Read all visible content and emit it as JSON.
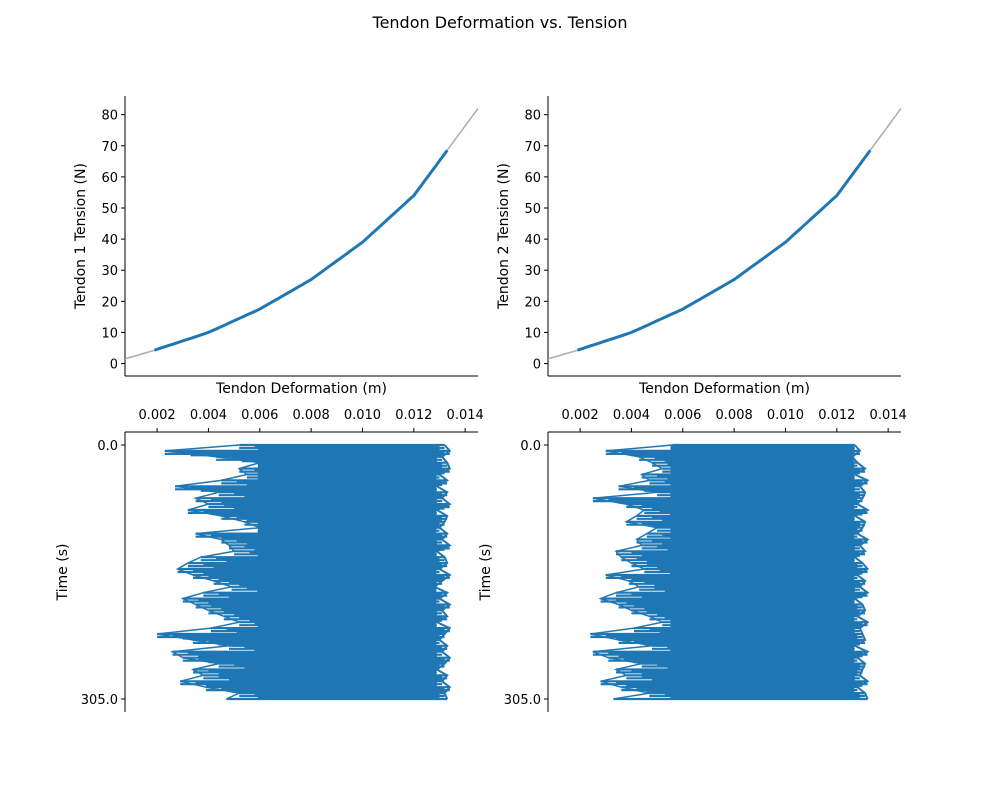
{
  "title": "Tendon Deformation vs. Tension",
  "colors": {
    "data": "#1f77b4",
    "reference": "#b0b0b0",
    "axis": "#000000"
  },
  "chart_data": [
    {
      "type": "line",
      "panel": "top-left",
      "xlabel": "Tendon Deformation (m)",
      "ylabel": "Tendon 1 Tension (N)",
      "xlim": [
        0.00075,
        0.0145
      ],
      "ylim": [
        -4,
        86
      ],
      "yticks": [
        0,
        10,
        20,
        30,
        40,
        50,
        60,
        70,
        80
      ],
      "xticks_shown": false,
      "series": [
        {
          "x": [
            0.00075,
            0.002,
            0.004,
            0.006,
            0.008,
            0.01,
            0.012,
            0.0145
          ],
          "y": [
            1.5,
            4.5,
            10,
            17.5,
            27,
            39,
            54,
            82
          ]
        },
        {
          "x": [
            0.0019,
            0.004,
            0.006,
            0.008,
            0.01,
            0.012,
            0.0133
          ],
          "y": [
            4.3,
            10,
            17.5,
            27,
            39,
            54,
            68.5
          ]
        }
      ]
    },
    {
      "type": "line",
      "panel": "top-right",
      "xlabel": "Tendon Deformation (m)",
      "ylabel": "Tendon 2 Tension (N)",
      "xlim": [
        0.00075,
        0.0145
      ],
      "ylim": [
        -4,
        86
      ],
      "yticks": [
        0,
        10,
        20,
        30,
        40,
        50,
        60,
        70,
        80
      ],
      "xticks_shown": false,
      "series": [
        {
          "x": [
            0.00075,
            0.002,
            0.004,
            0.006,
            0.008,
            0.01,
            0.012,
            0.0145
          ],
          "y": [
            1.5,
            4.5,
            10,
            17.5,
            27,
            39,
            54,
            82
          ]
        },
        {
          "x": [
            0.0019,
            0.004,
            0.006,
            0.008,
            0.01,
            0.012,
            0.0133
          ],
          "y": [
            4.3,
            10,
            17.5,
            27,
            39,
            54,
            68.5
          ]
        }
      ]
    },
    {
      "type": "line",
      "panel": "bottom-left",
      "ylabel": "Time (s)",
      "xlim": [
        0.00075,
        0.0145
      ],
      "ylim": [
        305.0,
        0.0
      ],
      "xticks": [
        0.002,
        0.004,
        0.006,
        0.008,
        0.01,
        0.012,
        0.014
      ],
      "xtick_labels": [
        "0.002",
        "0.004",
        "0.006",
        "0.008",
        "0.010",
        "0.012",
        "0.014"
      ],
      "ytick_labels": [
        "0.0",
        "305.0"
      ],
      "left_extent_m": [
        0.0052,
        0.0023,
        0.0043,
        0.006,
        0.0052,
        0.0055,
        0.0045,
        0.0027,
        0.0044,
        0.0035,
        0.004,
        0.0032,
        0.0045,
        0.0054,
        0.006,
        0.0035,
        0.0045,
        0.0048,
        0.005,
        0.0037,
        0.0032,
        0.0028,
        0.0034,
        0.0042,
        0.0049,
        0.0038,
        0.003,
        0.0035,
        0.004,
        0.0046,
        0.0052,
        0.0041,
        0.002,
        0.0034,
        0.0048,
        0.0026,
        0.003,
        0.0044,
        0.0034,
        0.0038,
        0.0029,
        0.0039,
        0.0052,
        0.0047
      ],
      "right_extent_m": [
        0.0132,
        0.0134,
        0.0131,
        0.0133,
        0.0134,
        0.013,
        0.0133,
        0.0129,
        0.0133,
        0.0131,
        0.0134,
        0.0129,
        0.0133,
        0.0132,
        0.013,
        0.0133,
        0.0131,
        0.0134,
        0.0129,
        0.0132,
        0.0133,
        0.013,
        0.0134,
        0.0131,
        0.0128,
        0.0133,
        0.013,
        0.0134,
        0.0131,
        0.0133,
        0.0129,
        0.0134,
        0.0132,
        0.013,
        0.0133,
        0.0131,
        0.0134,
        0.0132,
        0.0129,
        0.0133,
        0.0131,
        0.0134,
        0.0132,
        0.0133
      ]
    },
    {
      "type": "line",
      "panel": "bottom-right",
      "ylabel": "Time (s)",
      "xlim": [
        0.00075,
        0.0145
      ],
      "ylim": [
        305.0,
        0.0
      ],
      "xticks": [
        0.002,
        0.004,
        0.006,
        0.008,
        0.01,
        0.012,
        0.014
      ],
      "xtick_labels": [
        "0.002",
        "0.004",
        "0.006",
        "0.008",
        "0.010",
        "0.012",
        "0.014"
      ],
      "ytick_labels": [
        "0.0",
        "305.0"
      ],
      "left_extent_m": [
        0.0056,
        0.003,
        0.0043,
        0.0048,
        0.0052,
        0.0044,
        0.0047,
        0.0035,
        0.005,
        0.0025,
        0.0038,
        0.0045,
        0.0042,
        0.0038,
        0.005,
        0.0046,
        0.0042,
        0.0044,
        0.0034,
        0.0036,
        0.004,
        0.0045,
        0.003,
        0.0039,
        0.0043,
        0.0034,
        0.0028,
        0.0035,
        0.004,
        0.0047,
        0.0052,
        0.0041,
        0.0024,
        0.0035,
        0.0048,
        0.0025,
        0.0031,
        0.0044,
        0.0034,
        0.0038,
        0.0028,
        0.0036,
        0.0047,
        0.0033
      ],
      "right_extent_m": [
        0.0127,
        0.0129,
        0.0126,
        0.0128,
        0.0131,
        0.0127,
        0.0132,
        0.0129,
        0.0131,
        0.013,
        0.0128,
        0.0132,
        0.0127,
        0.0131,
        0.013,
        0.0128,
        0.0132,
        0.0129,
        0.0131,
        0.0127,
        0.013,
        0.0132,
        0.0128,
        0.0131,
        0.0129,
        0.0132,
        0.0127,
        0.013,
        0.0131,
        0.0128,
        0.0132,
        0.0129,
        0.013,
        0.0131,
        0.0127,
        0.0132,
        0.0128,
        0.0131,
        0.013,
        0.0129,
        0.0132,
        0.0128,
        0.0131,
        0.0132
      ]
    }
  ]
}
